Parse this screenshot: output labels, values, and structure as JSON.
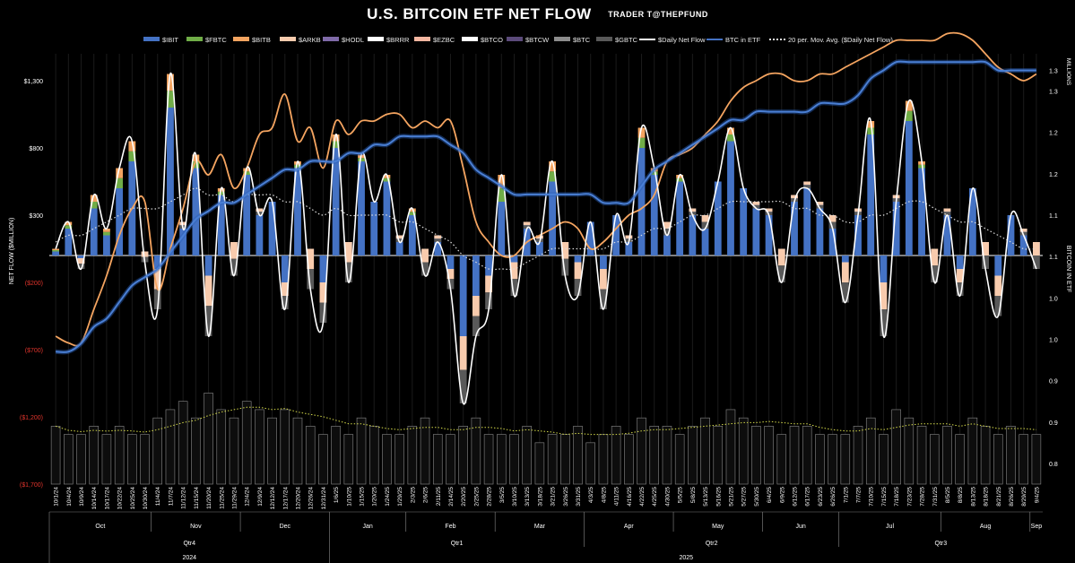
{
  "title": "U.S. BITCOIN ETF NET FLOW",
  "subtitle": "TRADER T@THEPFUND",
  "legend": [
    {
      "label": "$IBIT",
      "color": "#4472c4",
      "kind": "box"
    },
    {
      "label": "$FBTC",
      "color": "#70ad47",
      "kind": "box"
    },
    {
      "label": "$BITB",
      "color": "#f4a460",
      "kind": "box"
    },
    {
      "label": "$ARKB",
      "color": "#f8cbad",
      "kind": "box"
    },
    {
      "label": "$HODL",
      "color": "#7f6aa8",
      "kind": "box"
    },
    {
      "label": "$BRRR",
      "color": "#ffffff",
      "kind": "box"
    },
    {
      "label": "$EZBC",
      "color": "#f4b6a0",
      "kind": "box"
    },
    {
      "label": "$BTCO",
      "color": "#ffffff",
      "kind": "box"
    },
    {
      "label": "$BTCW",
      "color": "#5b4a7a",
      "kind": "box"
    },
    {
      "label": "$BTC",
      "color": "#8c8c8c",
      "kind": "box"
    },
    {
      "label": "$GBTC",
      "color": "#595959",
      "kind": "box"
    },
    {
      "label": "$Daily Net Flow",
      "color": "#ffffff",
      "kind": "line"
    },
    {
      "label": "BTC in ETF",
      "color": "#4472c4",
      "kind": "line"
    },
    {
      "label": "20 per. Mov. Avg. ($Daily Net Flow)",
      "color": "#dddddd",
      "kind": "dotted"
    }
  ],
  "colors": {
    "ibit": "#4472c4",
    "fbtc": "#70ad47",
    "bitb": "#f4a460",
    "arkb": "#f8cbad",
    "gbtc": "#595959",
    "btc": "#8c8c8c",
    "price_line": "#f4a460",
    "btc_in_etf_line": "#4a7fd4",
    "net_flow_line": "#ffffff",
    "ma_line": "#dddddd",
    "volume_ma": "#d4d94a",
    "bg": "#000000"
  },
  "chart_data": {
    "type": "bar",
    "left_axis": {
      "label": "NET FLOW ($MILLION)",
      "ticks": [
        "$1,300",
        "$800",
        "$300",
        "($200)",
        "($700)",
        "($1,200)",
        "($1,700)"
      ],
      "tick_values": [
        1300,
        800,
        300,
        -200,
        -700,
        -1200,
        -1700
      ],
      "range": [
        -1700,
        1500
      ]
    },
    "right_axis": {
      "label": "BITCOIN IN ETF",
      "unit_label": "MILLIONS",
      "ticks": [
        "1.3",
        "1.3",
        "1.2",
        "1.2",
        "1.1",
        "1.1",
        "1.0",
        "1.0",
        "0.9",
        "0.9",
        "0.8"
      ],
      "tick_values": [
        1.3,
        1.275,
        1.225,
        1.175,
        1.125,
        1.075,
        1.025,
        0.975,
        0.925,
        0.875,
        0.825
      ],
      "range": [
        0.8,
        1.32
      ]
    },
    "x_dates": [
      "10/1/24",
      "10/4/24",
      "10/9/24",
      "10/14/24",
      "10/17/24",
      "10/22/24",
      "10/25/24",
      "10/30/24",
      "11/4/24",
      "11/7/24",
      "11/12/24",
      "11/15/24",
      "11/20/24",
      "11/25/24",
      "11/29/24",
      "12/4/24",
      "12/9/24",
      "12/12/24",
      "12/17/24",
      "12/20/24",
      "12/26/24",
      "12/31/24",
      "1/6/25",
      "1/10/25",
      "1/15/25",
      "1/20/25",
      "1/24/25",
      "1/29/25",
      "2/3/25",
      "2/6/25",
      "2/11/25",
      "2/14/25",
      "2/20/25",
      "2/25/25",
      "2/28/25",
      "3/5/25",
      "3/10/25",
      "3/13/25",
      "3/18/25",
      "3/21/25",
      "3/26/25",
      "3/31/25",
      "4/3/25",
      "4/8/25",
      "4/11/25",
      "4/16/25",
      "4/22/25",
      "4/25/25",
      "4/30/25",
      "5/5/25",
      "5/8/25",
      "5/13/25",
      "5/16/25",
      "5/21/25",
      "5/27/25",
      "5/30/25",
      "6/4/25",
      "6/9/25",
      "6/12/25",
      "6/17/25",
      "6/23/25",
      "6/26/25",
      "7/1/25",
      "7/7/25",
      "7/10/25",
      "7/15/25",
      "7/18/25",
      "7/23/25",
      "7/28/25",
      "7/31/25",
      "8/5/25",
      "8/8/25",
      "8/13/25",
      "8/18/25",
      "8/21/25",
      "8/26/25",
      "8/29/25",
      "9/4/25"
    ],
    "months": [
      {
        "label": "Oct",
        "start": 0,
        "end": 7
      },
      {
        "label": "Nov",
        "start": 8,
        "end": 14
      },
      {
        "label": "Dec",
        "start": 15,
        "end": 21
      },
      {
        "label": "Jan",
        "start": 22,
        "end": 27
      },
      {
        "label": "Feb",
        "start": 28,
        "end": 34
      },
      {
        "label": "Mar",
        "start": 35,
        "end": 41
      },
      {
        "label": "Apr",
        "start": 42,
        "end": 48
      },
      {
        "label": "May",
        "start": 49,
        "end": 55
      },
      {
        "label": "Jun",
        "start": 56,
        "end": 61
      },
      {
        "label": "Jul",
        "start": 62,
        "end": 69
      },
      {
        "label": "Aug",
        "start": 70,
        "end": 76
      },
      {
        "label": "Sep",
        "start": 77,
        "end": 77
      }
    ],
    "quarters": [
      {
        "label": "Qtr4",
        "start": 0,
        "end": 21
      },
      {
        "label": "Qtr1",
        "start": 22,
        "end": 41
      },
      {
        "label": "Qtr2",
        "start": 42,
        "end": 61
      },
      {
        "label": "Qtr3",
        "start": 62,
        "end": 77
      }
    ],
    "years": [
      {
        "label": "2024",
        "start": 0,
        "end": 21
      },
      {
        "label": "2025",
        "start": 22,
        "end": 77
      }
    ],
    "series": [
      {
        "name": "$Daily Net Flow",
        "values": [
          50,
          250,
          -100,
          450,
          200,
          650,
          850,
          -50,
          -400,
          1350,
          200,
          750,
          -600,
          500,
          -150,
          650,
          300,
          400,
          -400,
          700,
          -250,
          -500,
          900,
          -200,
          750,
          400,
          600,
          100,
          350,
          -150,
          100,
          -250,
          -1100,
          -600,
          -400,
          600,
          -300,
          200,
          100,
          700,
          -150,
          -300,
          250,
          -400,
          300,
          100,
          950,
          650,
          150,
          600,
          300,
          200,
          550,
          950,
          500,
          350,
          300,
          -200,
          400,
          500,
          350,
          200,
          -350,
          300,
          1000,
          -600,
          400,
          1150,
          700,
          -200,
          300,
          -300,
          500,
          -100,
          -450,
          300,
          150,
          -100
        ]
      },
      {
        "name": "$IBIT",
        "values": [
          30,
          200,
          -20,
          350,
          150,
          500,
          700,
          30,
          -100,
          1100,
          250,
          650,
          -150,
          450,
          100,
          600,
          350,
          400,
          -200,
          650,
          50,
          -200,
          800,
          100,
          700,
          400,
          550,
          150,
          300,
          50,
          150,
          -100,
          -600,
          -300,
          -150,
          400,
          -50,
          250,
          150,
          550,
          100,
          -50,
          250,
          -100,
          300,
          150,
          800,
          600,
          250,
          550,
          350,
          300,
          550,
          850,
          500,
          400,
          350,
          50,
          450,
          550,
          400,
          300,
          -50,
          350,
          900,
          -200,
          450,
          1000,
          650,
          50,
          350,
          -100,
          500,
          100,
          -150,
          300,
          200,
          100
        ]
      },
      {
        "name": "BTC in ETF",
        "values": [
          0.96,
          0.96,
          0.97,
          0.99,
          1.0,
          1.02,
          1.04,
          1.05,
          1.06,
          1.08,
          1.1,
          1.12,
          1.13,
          1.14,
          1.14,
          1.15,
          1.16,
          1.17,
          1.18,
          1.18,
          1.19,
          1.19,
          1.19,
          1.2,
          1.2,
          1.21,
          1.21,
          1.22,
          1.22,
          1.22,
          1.22,
          1.21,
          1.2,
          1.18,
          1.17,
          1.16,
          1.15,
          1.15,
          1.15,
          1.15,
          1.15,
          1.15,
          1.15,
          1.14,
          1.14,
          1.14,
          1.16,
          1.18,
          1.19,
          1.2,
          1.21,
          1.22,
          1.23,
          1.24,
          1.24,
          1.25,
          1.25,
          1.25,
          1.25,
          1.25,
          1.26,
          1.26,
          1.26,
          1.27,
          1.29,
          1.3,
          1.31,
          1.31,
          1.31,
          1.31,
          1.31,
          1.31,
          1.31,
          1.31,
          1.3,
          1.3,
          1.3,
          1.3
        ]
      },
      {
        "name": "$BITB",
        "values": [
          -600,
          -650,
          -650,
          -400,
          -150,
          150,
          350,
          400,
          -250,
          50,
          350,
          700,
          600,
          750,
          500,
          650,
          900,
          950,
          1200,
          850,
          950,
          650,
          1000,
          900,
          1000,
          1000,
          1050,
          1050,
          950,
          1000,
          950,
          1000,
          650,
          250,
          100,
          0,
          0,
          100,
          150,
          200,
          250,
          200,
          50,
          100,
          200,
          300,
          350,
          450,
          700,
          750,
          800,
          900,
          1000,
          1150,
          1250,
          1300,
          1350,
          1350,
          1300,
          1300,
          1350,
          1350,
          1400,
          1450,
          1500,
          1550,
          1600,
          1600,
          1600,
          1600,
          1650,
          1650,
          1600,
          1500,
          1400,
          1350,
          1300,
          1350
        ]
      },
      {
        "name": "20 per. Mov. Avg. ($Daily Net Flow)",
        "values": [
          100,
          150,
          150,
          200,
          250,
          300,
          350,
          350,
          350,
          400,
          450,
          500,
          450,
          450,
          400,
          450,
          450,
          450,
          400,
          400,
          350,
          300,
          350,
          300,
          300,
          300,
          300,
          250,
          250,
          200,
          150,
          100,
          0,
          -50,
          -100,
          -100,
          -100,
          -50,
          0,
          50,
          50,
          50,
          50,
          50,
          100,
          100,
          150,
          200,
          200,
          250,
          300,
          300,
          350,
          400,
          400,
          400,
          400,
          400,
          350,
          350,
          300,
          300,
          250,
          250,
          300,
          300,
          350,
          400,
          400,
          350,
          300,
          250,
          250,
          200,
          150,
          100,
          50,
          50
        ]
      },
      {
        "name": "Volume",
        "values": [
          0.87,
          0.86,
          0.86,
          0.87,
          0.86,
          0.87,
          0.86,
          0.86,
          0.88,
          0.89,
          0.9,
          0.88,
          0.91,
          0.89,
          0.88,
          0.9,
          0.89,
          0.88,
          0.89,
          0.88,
          0.87,
          0.86,
          0.87,
          0.86,
          0.88,
          0.87,
          0.86,
          0.86,
          0.87,
          0.88,
          0.86,
          0.86,
          0.87,
          0.88,
          0.86,
          0.86,
          0.86,
          0.87,
          0.85,
          0.86,
          0.86,
          0.87,
          0.85,
          0.86,
          0.87,
          0.86,
          0.88,
          0.87,
          0.87,
          0.86,
          0.87,
          0.88,
          0.87,
          0.89,
          0.88,
          0.87,
          0.87,
          0.86,
          0.87,
          0.87,
          0.86,
          0.86,
          0.86,
          0.87,
          0.88,
          0.86,
          0.89,
          0.88,
          0.87,
          0.86,
          0.87,
          0.86,
          0.88,
          0.87,
          0.86,
          0.87,
          0.86,
          0.86
        ]
      }
    ]
  }
}
